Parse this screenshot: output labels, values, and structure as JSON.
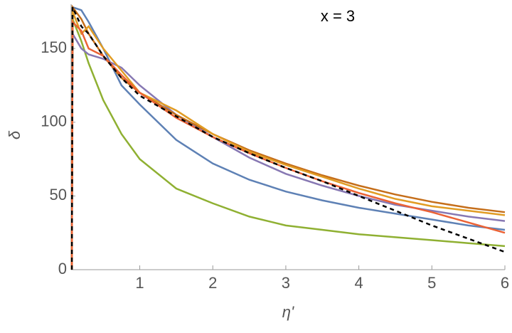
{
  "chart_data": {
    "type": "line",
    "xlabel": "η'",
    "ylabel": "δ",
    "annotation": "x = 3",
    "x": [
      0.07,
      0.08,
      0.2,
      0.3,
      0.5,
      0.75,
      1,
      1.5,
      2,
      2.5,
      3,
      3.5,
      4,
      4.5,
      5,
      5.5,
      6
    ],
    "series": [
      {
        "color": "#5e81b5",
        "values": [
          0,
          178,
          176,
          168,
          150,
          125,
          112,
          88,
          72,
          61,
          53,
          47,
          42,
          38,
          34,
          30,
          27
        ]
      },
      {
        "color": "#8fb032",
        "values": [
          0,
          170,
          155,
          140,
          115,
          92,
          75,
          55,
          45,
          36,
          30,
          27,
          24,
          22,
          20,
          18,
          16
        ]
      },
      {
        "color": "#8778b3",
        "values": [
          0,
          160,
          150,
          146,
          143,
          137,
          125,
          105,
          90,
          76,
          65,
          57,
          50,
          44,
          40,
          36,
          33
        ]
      },
      {
        "color": "#c56e1a",
        "values": [
          0,
          178,
          170,
          160,
          145,
          130,
          120,
          105,
          92,
          81,
          72,
          64,
          57,
          51,
          46,
          42,
          39
        ]
      },
      {
        "color": "#e19c24",
        "values": [
          0,
          175,
          160,
          165,
          150,
          135,
          120,
          108,
          92,
          80,
          71,
          63,
          55,
          48,
          43,
          40,
          37
        ]
      },
      {
        "color": "#eb6235",
        "values": [
          0,
          168,
          162,
          150,
          145,
          132,
          120,
          103,
          90,
          79,
          69,
          60,
          52,
          45,
          39,
          32,
          25
        ]
      },
      {
        "color": "#000000",
        "dashed": true,
        "values": [
          0,
          178,
          165,
          160,
          145,
          130,
          118,
          104,
          90,
          79,
          69,
          60,
          50,
          40,
          30,
          21,
          12
        ]
      }
    ],
    "xlim": [
      0.06,
      6
    ],
    "ylim": [
      0,
      180
    ],
    "xticks": [
      1,
      2,
      3,
      4,
      5,
      6
    ],
    "yticks": [
      0,
      50,
      100,
      150
    ]
  }
}
